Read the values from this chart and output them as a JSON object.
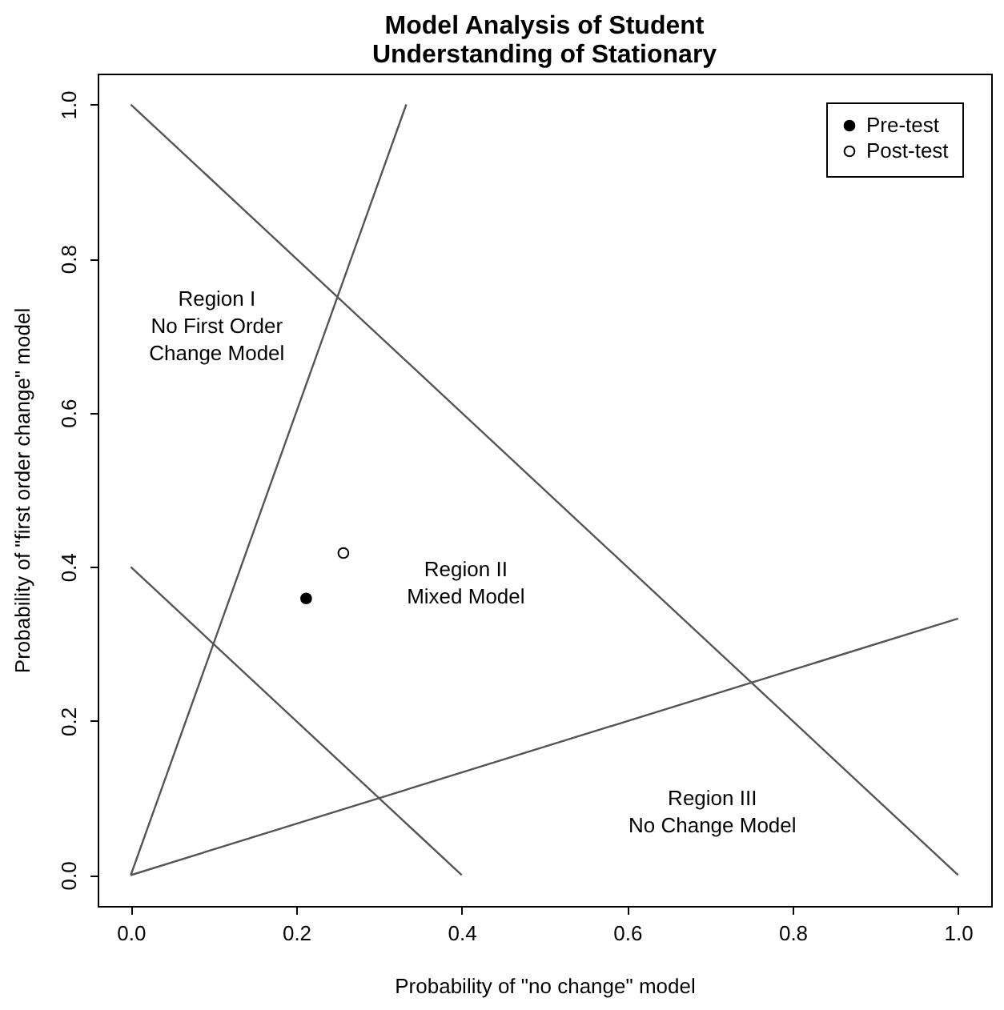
{
  "chart_data": {
    "type": "line",
    "title": "Model Analysis of Student\nUnderstanding of Stationary",
    "xlabel": "Probability of \"no change\" model",
    "ylabel": "Probability of \"first order change\" model",
    "series": [
      {
        "color": "#555555",
        "x": [
          0,
          0.333
        ],
        "values": [
          0,
          1
        ]
      },
      {
        "color": "#555555",
        "x": [
          0,
          1
        ],
        "values": [
          1,
          0
        ]
      },
      {
        "color": "#555555",
        "x": [
          0,
          1
        ],
        "values": [
          0,
          0.333
        ]
      },
      {
        "color": "#555555",
        "x": [
          0,
          0.4
        ],
        "values": [
          0.4,
          0
        ]
      },
      {
        "type": "scatter",
        "name": "Pre-test",
        "color": "#000000",
        "marker": "circle",
        "x": [
          0.212
        ],
        "values": [
          0.359
        ]
      },
      {
        "type": "scatter",
        "name": "Post-test",
        "color": "#ffffff",
        "marker": "circle",
        "x": [
          0.257
        ],
        "values": [
          0.418
        ]
      }
    ],
    "annotations": [
      "Region I\nNo First Order\nChange Model",
      "Region II\nMixed Model",
      "Region III\nNo Change Model"
    ],
    "xlim": [
      -0.04,
      1.04
    ],
    "ylim": [
      -0.04,
      1.04
    ],
    "xticks": [
      {
        "value": 0,
        "label": "0.0"
      },
      0.2,
      0.4,
      0.6,
      0.8,
      {
        "value": 1,
        "label": "1.0"
      }
    ],
    "yticks": [
      {
        "value": 0,
        "label": "0.0"
      },
      0.2,
      0.4,
      0.6,
      0.8,
      {
        "value": 1,
        "label": "1.0"
      }
    ],
    "grid": false,
    "legend": "top right",
    "line_style": "solid"
  }
}
